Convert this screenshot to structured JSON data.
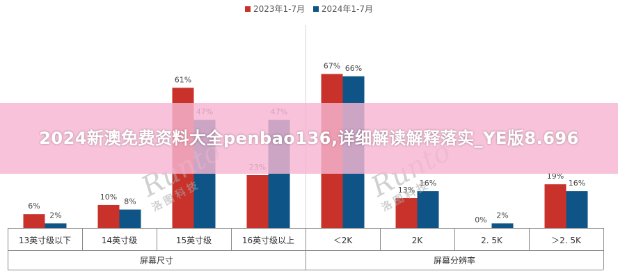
{
  "chart_data": {
    "type": "bar",
    "legend": [
      {
        "name": "2023年1-7月",
        "color": "#c9322b"
      },
      {
        "name": "2024年1-7月",
        "color": "#0f5486"
      }
    ],
    "categories": [
      "13英寸级以下",
      "14英寸级",
      "15英寸级",
      "16英寸级以上",
      "＜2K",
      "2K",
      "2. 5K",
      "＞2. 5K"
    ],
    "groups": [
      {
        "label": "屏幕尺寸",
        "count": 4
      },
      {
        "label": "屏幕分辨率",
        "count": 4
      }
    ],
    "series": [
      {
        "name": "2023年1-7月",
        "color": "#c9322b",
        "values": [
          6,
          10,
          61,
          23,
          67,
          13,
          0,
          19
        ],
        "labels": [
          "6%",
          "10%",
          "61%",
          "23%",
          "67%",
          "13%",
          "0%",
          "19%"
        ]
      },
      {
        "name": "2024年1-7月",
        "color": "#0f5486",
        "values": [
          2,
          8,
          47,
          47,
          66,
          16,
          2,
          16
        ],
        "labels": [
          "2%",
          "8%",
          "47%",
          "47%",
          "66%",
          "16%",
          "2%",
          "16%"
        ]
      }
    ],
    "ylim": [
      0,
      75
    ]
  },
  "overlay": {
    "banner": "2024新澳免费资料大全penbao136,详细解读解释落实_YE版8.696",
    "watermark_en": "Runto",
    "watermark_cn": "洛图科技"
  }
}
